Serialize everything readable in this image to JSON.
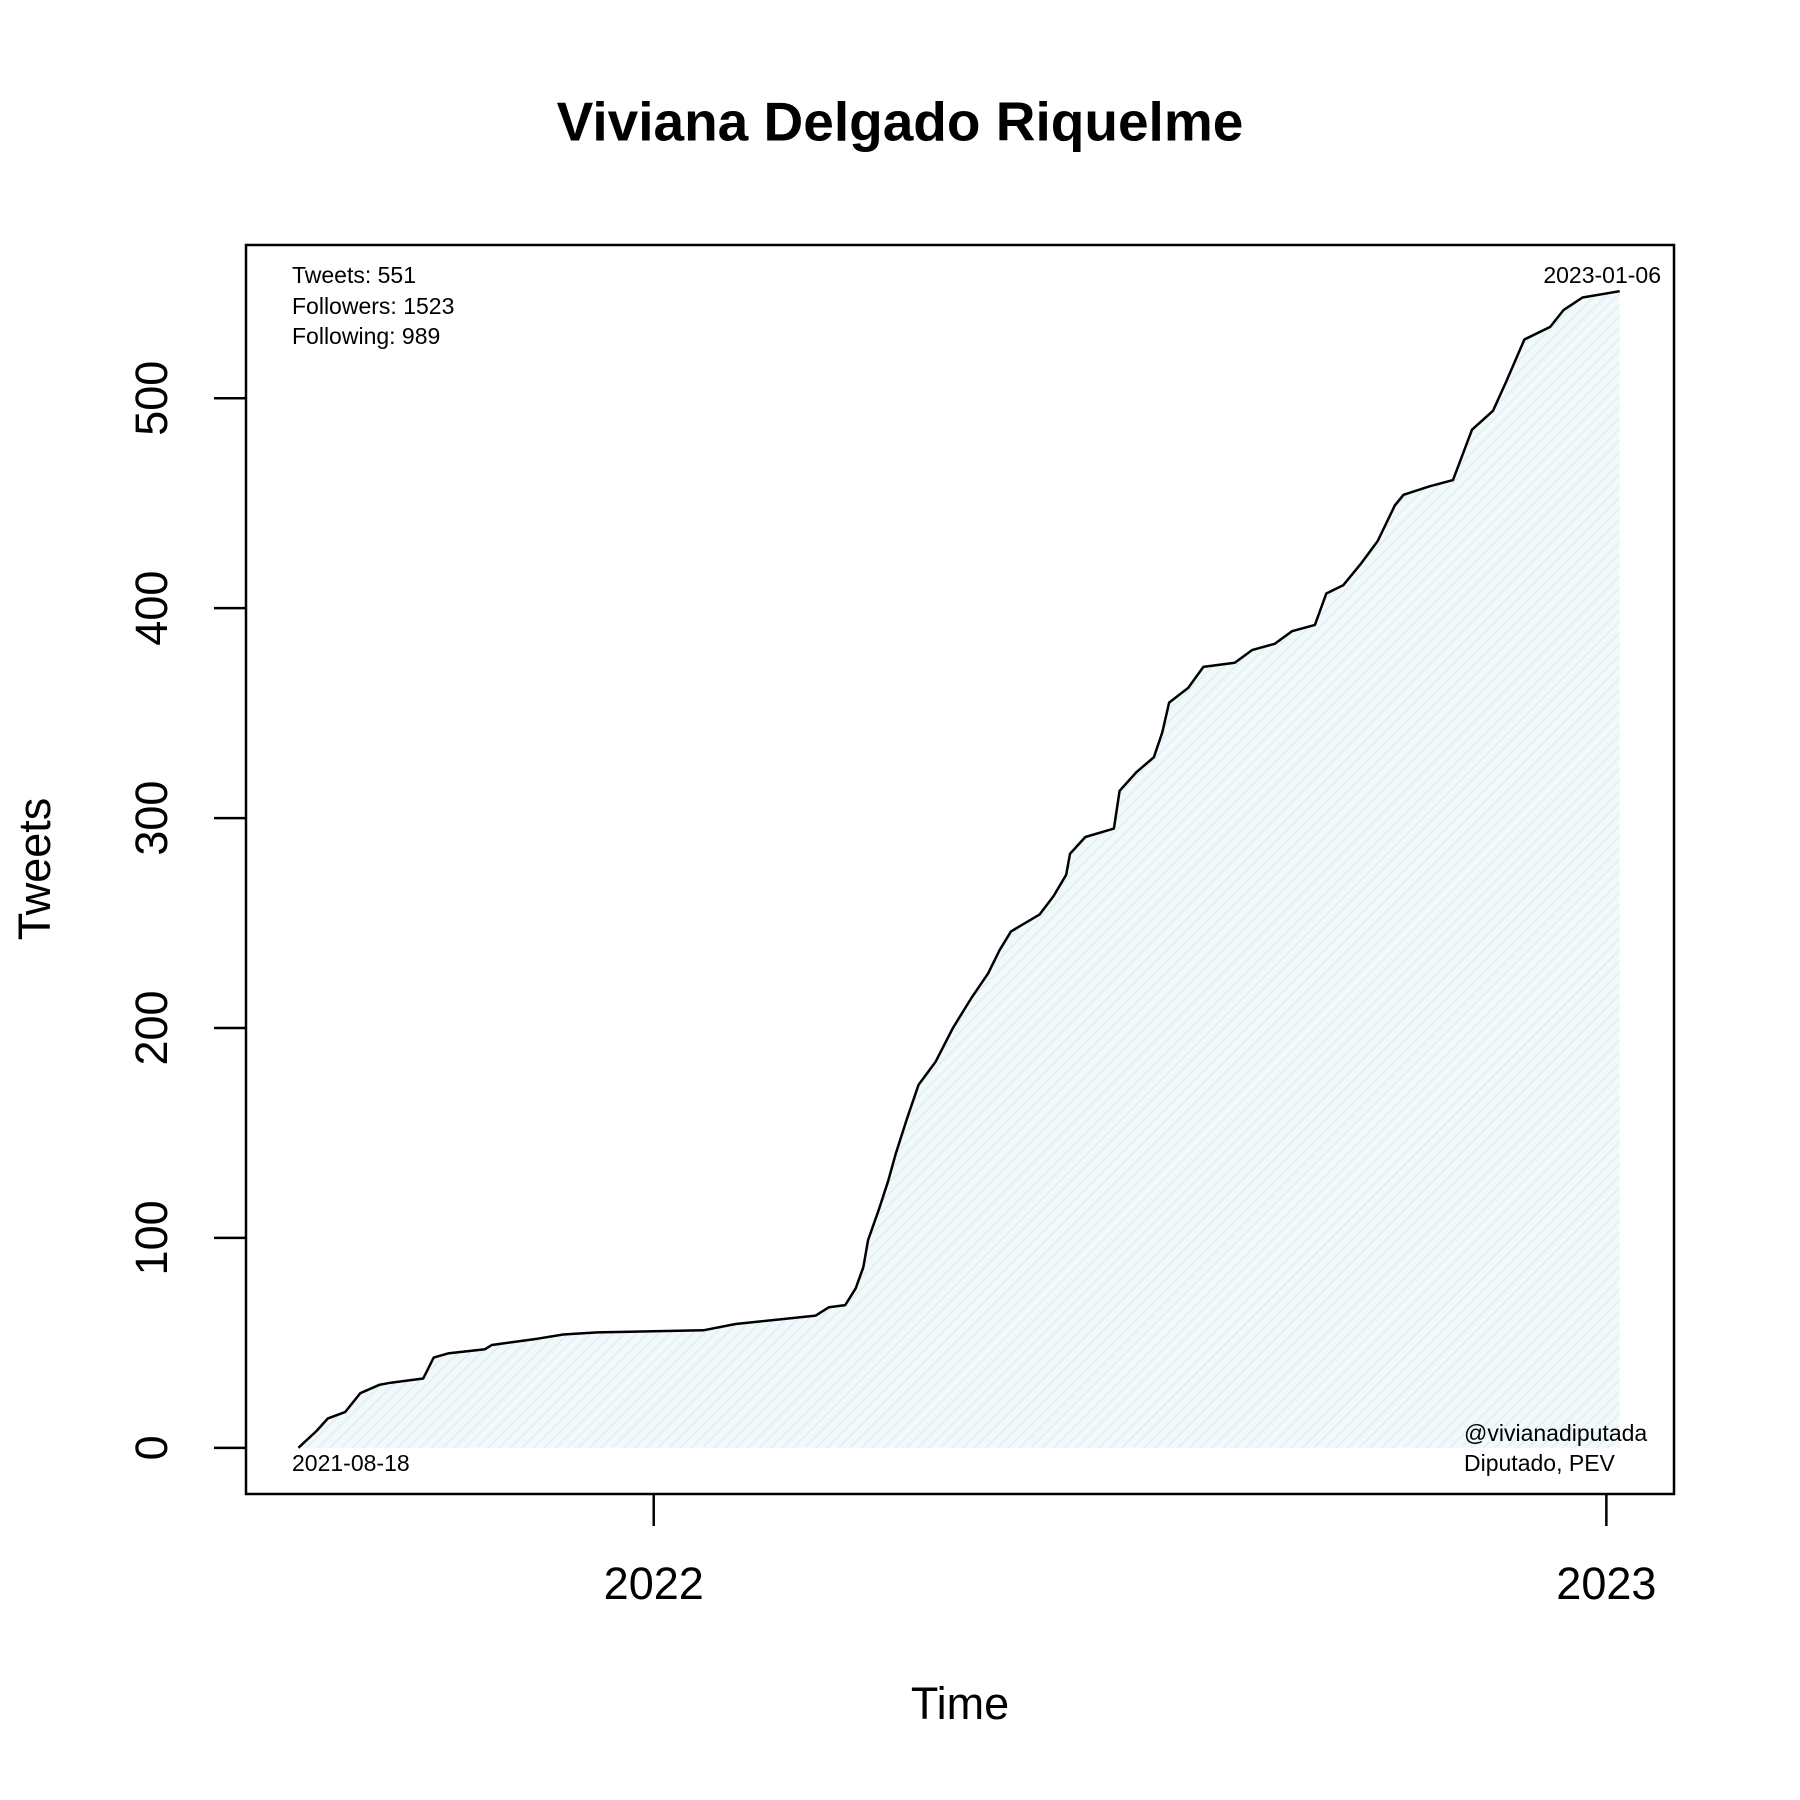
{
  "chart_data": {
    "type": "line",
    "title": "Viviana Delgado Riquelme",
    "x_label": "Time",
    "y_label": "Tweets",
    "x": [
      2021.627,
      2021.646,
      2021.658,
      2021.676,
      2021.692,
      2021.712,
      2021.724,
      2021.758,
      2021.769,
      2021.784,
      2021.823,
      2021.83,
      2021.878,
      2021.905,
      2021.941,
      2022.052,
      2022.086,
      2022.17,
      2022.184,
      2022.201,
      2022.212,
      2022.22,
      2022.225,
      2022.236,
      2022.246,
      2022.254,
      2022.266,
      2022.278,
      2022.296,
      2022.314,
      2022.333,
      2022.351,
      2022.363,
      2022.375,
      2022.405,
      2022.42,
      2022.433,
      2022.437,
      2022.453,
      2022.483,
      2022.489,
      2022.507,
      2022.525,
      2022.534,
      2022.541,
      2022.561,
      2022.577,
      2022.61,
      2022.628,
      2022.652,
      2022.67,
      2022.694,
      2022.706,
      2022.724,
      2022.742,
      2022.76,
      2022.778,
      2022.787,
      2022.814,
      2022.839,
      2022.859,
      2022.881,
      2022.895,
      2022.914,
      2022.941,
      2022.955,
      2022.975,
      2023.014
    ],
    "series": [
      {
        "name": "Tweets",
        "color": "#000000",
        "fill": "#e3f1f4",
        "values": [
          0,
          8,
          14,
          17,
          26,
          30,
          31,
          33,
          43,
          45,
          47,
          49,
          52,
          54,
          55,
          56,
          59,
          63,
          67,
          68,
          76,
          86,
          99,
          113,
          127,
          140,
          157,
          173,
          184,
          200,
          214,
          226,
          237,
          246,
          254,
          263,
          273,
          283,
          291,
          295,
          313,
          322,
          329,
          341,
          355,
          362,
          372,
          374,
          380,
          383,
          389,
          392,
          407,
          411,
          421,
          432,
          449,
          454,
          458,
          461,
          485,
          494,
          508,
          528,
          534,
          542,
          548,
          551
        ]
      }
    ],
    "xlim": [
      2021.572,
      2023.071
    ],
    "xticks": [
      2022,
      2023
    ],
    "ylim": [
      -22,
      573
    ],
    "yticks": [
      0,
      100,
      200,
      300,
      400,
      500
    ],
    "annotations": [
      "Tweets: 551",
      "Followers: 1523",
      "Following: 989",
      "2023-01-06",
      "2021-08-18",
      "@vivianadiputada",
      "Diputado, PEV"
    ]
  }
}
